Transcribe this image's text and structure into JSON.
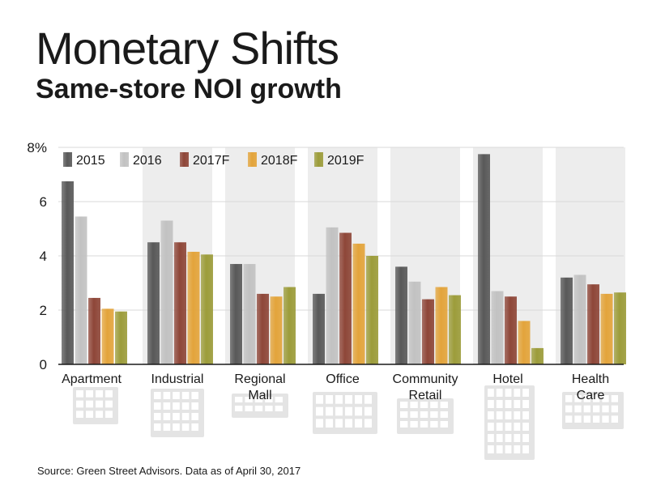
{
  "header": {
    "title": "Monetary Shifts",
    "subtitle": "Same-store NOI growth"
  },
  "footer": {
    "source": "Source: Green Street Advisors. Data as of April 30, 2017"
  },
  "colors": {
    "2015": "#595959",
    "2016": "#c2c2c2",
    "2017F": "#8e4638",
    "2018F": "#e3a43b",
    "2019F": "#9c9c3a",
    "panel": "#ededed",
    "icon": "#e4e4e4"
  },
  "chart_data": {
    "type": "bar",
    "title": "Monetary Shifts",
    "subtitle": "Same-store NOI growth",
    "categories": [
      "Apartment",
      "Industrial",
      "Regional\nMall",
      "Office",
      "Community\nRetail",
      "Hotel",
      "Health\nCare"
    ],
    "series": [
      {
        "name": "2015",
        "values": [
          6.75,
          4.5,
          3.7,
          2.6,
          3.6,
          7.75,
          3.2
        ]
      },
      {
        "name": "2016",
        "values": [
          5.45,
          5.3,
          3.7,
          5.05,
          3.05,
          2.7,
          3.3
        ]
      },
      {
        "name": "2017F",
        "values": [
          2.45,
          4.5,
          2.6,
          4.85,
          2.4,
          2.5,
          2.95
        ]
      },
      {
        "name": "2018F",
        "values": [
          2.05,
          4.15,
          2.5,
          4.45,
          2.85,
          1.6,
          2.6
        ]
      },
      {
        "name": "2019F",
        "values": [
          1.95,
          4.05,
          2.85,
          4.0,
          2.55,
          0.6,
          2.65
        ]
      }
    ],
    "xlabel": "",
    "ylabel": "",
    "ylim": [
      0,
      8
    ],
    "yticks": [
      0,
      2,
      4,
      6,
      8
    ],
    "ytick_labels": [
      "0",
      "2",
      "4",
      "6",
      "8%"
    ],
    "grid": true,
    "legend_position": "top-left"
  }
}
